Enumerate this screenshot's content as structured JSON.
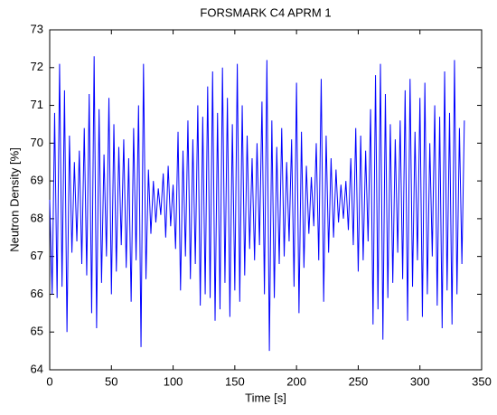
{
  "chart_data": {
    "type": "line",
    "title": "FORSMARK C4 APRM 1",
    "x_label": "Time   [s]",
    "y_label": "Neutron Density   [%]",
    "x": [
      0,
      2,
      4,
      6,
      8,
      10,
      12,
      14,
      16,
      18,
      20,
      22,
      24,
      26,
      28,
      30,
      32,
      34,
      36,
      38,
      40,
      42,
      44,
      46,
      48,
      50,
      52,
      54,
      56,
      58,
      60,
      62,
      64,
      66,
      68,
      70,
      72,
      74,
      76,
      78,
      80,
      82,
      84,
      86,
      88,
      90,
      92,
      94,
      96,
      98,
      100,
      102,
      104,
      106,
      108,
      110,
      112,
      114,
      116,
      118,
      120,
      122,
      124,
      126,
      128,
      130,
      132,
      134,
      136,
      138,
      140,
      142,
      144,
      146,
      148,
      150,
      152,
      154,
      156,
      158,
      160,
      162,
      164,
      166,
      168,
      170,
      172,
      174,
      176,
      178,
      180,
      182,
      184,
      186,
      188,
      190,
      192,
      194,
      196,
      198,
      200,
      202,
      204,
      206,
      208,
      210,
      212,
      214,
      216,
      218,
      220,
      222,
      224,
      226,
      228,
      230,
      232,
      234,
      236,
      238,
      240,
      242,
      244,
      246,
      248,
      250,
      252,
      254,
      256,
      258,
      260,
      262,
      264,
      266,
      268,
      270,
      272,
      274,
      276,
      278,
      280,
      282,
      284,
      286,
      288,
      290,
      292,
      294,
      296,
      298,
      300,
      302,
      304,
      306,
      308,
      310,
      312,
      314,
      316,
      318,
      320,
      322,
      324,
      326,
      328,
      330,
      332,
      334,
      336
    ],
    "series": [
      {
        "color": "#0000ff",
        "values": [
          68.5,
          66.0,
          70.8,
          65.9,
          72.1,
          66.2,
          71.4,
          65.0,
          70.2,
          67.1,
          69.5,
          67.4,
          69.8,
          66.8,
          70.4,
          66.5,
          71.3,
          65.5,
          72.3,
          65.1,
          70.9,
          66.3,
          69.7,
          67.0,
          71.2,
          66.0,
          70.5,
          66.6,
          69.9,
          67.3,
          70.1,
          66.7,
          69.6,
          65.8,
          70.4,
          66.9,
          71.0,
          64.6,
          72.1,
          66.4,
          69.3,
          67.6,
          69.0,
          67.9,
          68.8,
          68.1,
          69.2,
          67.5,
          69.4,
          67.8,
          68.9,
          67.2,
          70.3,
          66.1,
          69.8,
          67.0,
          70.6,
          66.4,
          70.1,
          66.8,
          71.0,
          65.7,
          70.7,
          66.0,
          71.5,
          65.9,
          71.9,
          65.3,
          70.8,
          65.6,
          72.0,
          66.3,
          71.2,
          65.4,
          70.5,
          66.1,
          72.1,
          65.8,
          71.0,
          66.5,
          70.2,
          67.2,
          69.6,
          66.9,
          70.0,
          67.3,
          71.1,
          66.0,
          72.2,
          64.5,
          70.6,
          65.9,
          69.9,
          66.8,
          70.4,
          67.0,
          69.5,
          67.4,
          70.1,
          66.2,
          71.6,
          65.5,
          70.3,
          66.7,
          69.4,
          67.6,
          69.1,
          67.8,
          70.0,
          66.9,
          71.7,
          65.8,
          70.2,
          67.1,
          69.6,
          67.5,
          69.3,
          67.9,
          68.9,
          68.0,
          69.0,
          67.7,
          69.6,
          67.3,
          70.4,
          66.6,
          70.2,
          66.9,
          69.8,
          67.4,
          70.9,
          65.2,
          71.8,
          65.6,
          72.1,
          64.8,
          71.3,
          65.9,
          70.5,
          66.3,
          70.1,
          67.1,
          70.6,
          66.4,
          71.4,
          65.3,
          71.7,
          66.2,
          70.3,
          66.9,
          71.2,
          65.4,
          71.6,
          66.0,
          70.0,
          67.0,
          71.0,
          65.7,
          70.7,
          65.1,
          71.9,
          66.1,
          70.8,
          65.2,
          72.2,
          66.0,
          70.4,
          66.8,
          70.6
        ]
      }
    ],
    "xlim": [
      0,
      350
    ],
    "xticks": [
      0,
      50,
      100,
      150,
      200,
      250,
      300,
      350
    ],
    "ylim": [
      64,
      73
    ],
    "yticks": [
      64,
      65,
      66,
      67,
      68,
      69,
      70,
      71,
      72,
      73
    ],
    "grid": false
  }
}
